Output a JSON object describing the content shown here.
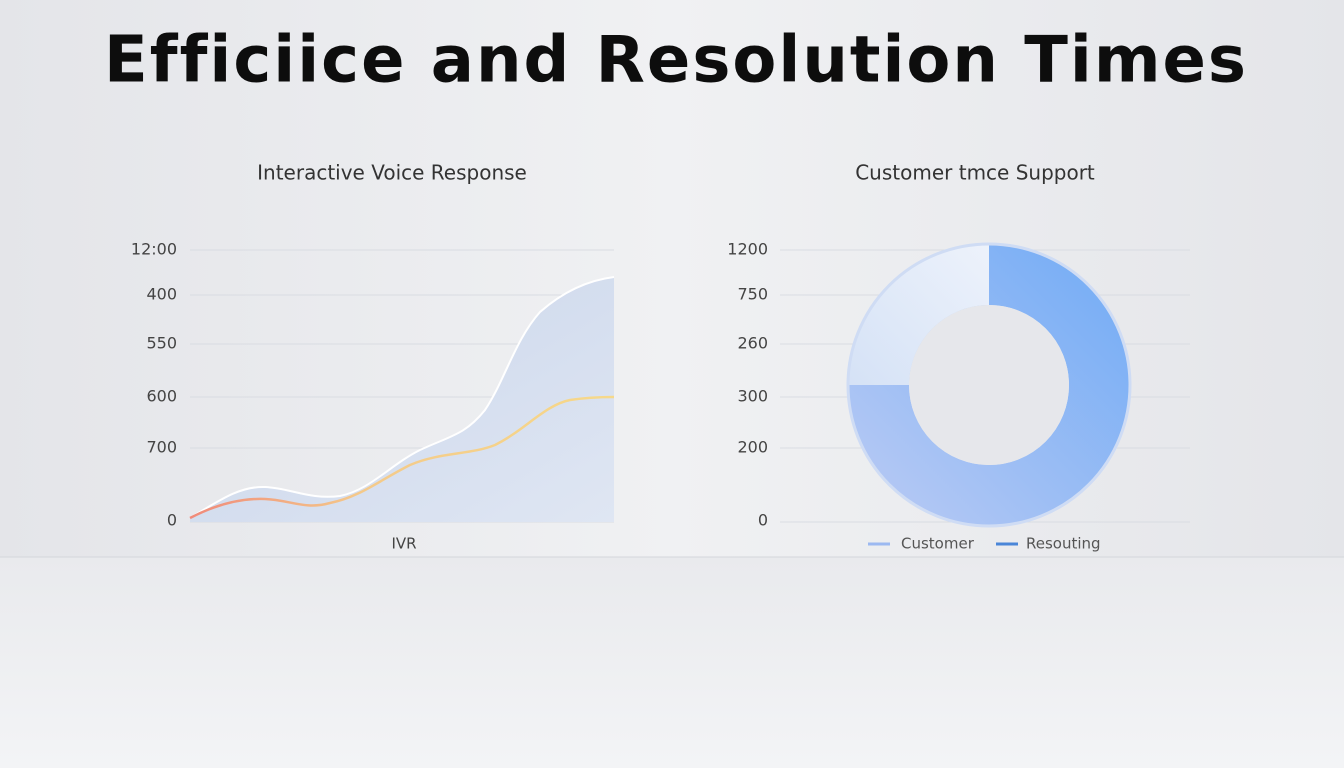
{
  "title": "Efficiice and Resolution Times",
  "panels": [
    {
      "title": "Interactive Voice Response",
      "y_labels": [
        "12:00",
        "400",
        "550",
        "600",
        "700",
        "0"
      ],
      "x_label": "IVR"
    },
    {
      "title": "Customer tmce Support",
      "y_labels": [
        "1200",
        "750",
        "260",
        "300",
        "200",
        "0"
      ],
      "legend": [
        "Customer",
        "Resouting"
      ]
    }
  ]
}
